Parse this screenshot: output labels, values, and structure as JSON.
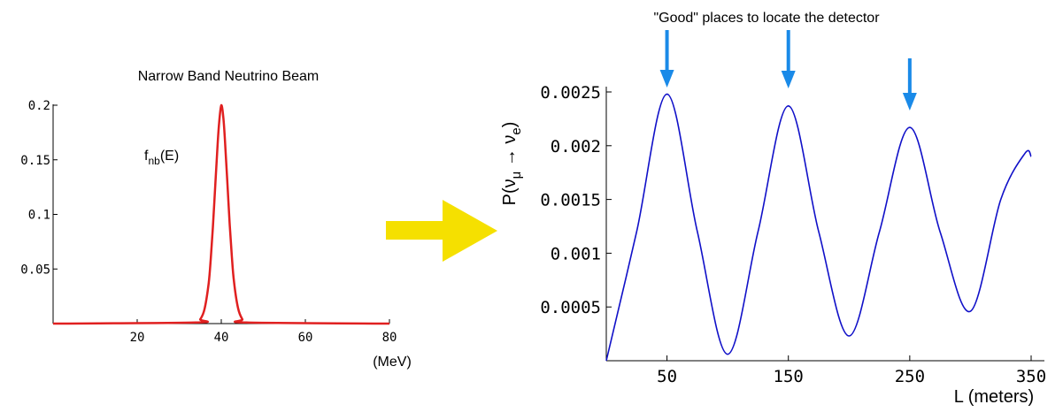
{
  "chart_data": [
    {
      "type": "line",
      "title": "Narrow Band Neutrino Beam",
      "xlabel": "(MeV)",
      "ylabel": "",
      "xlim": [
        0,
        80
      ],
      "ylim": [
        0,
        0.2
      ],
      "x_ticks": [
        20,
        40,
        60,
        80
      ],
      "x_tick_labels": [
        "20",
        "40",
        "60",
        "80"
      ],
      "y_ticks": [
        0.05,
        0.1,
        0.15,
        0.2
      ],
      "y_tick_labels": [
        "0.05",
        "0.1",
        "0.15",
        "0.2"
      ],
      "grid": false,
      "series": [
        {
          "label_main": "f",
          "label_sub": "nb",
          "label_tail": "(E)",
          "color": "#e02020",
          "x": [
            34,
            35,
            36,
            37,
            37.5,
            38,
            38.5,
            39,
            39.5,
            40,
            40.5,
            41,
            41.5,
            42,
            42.5,
            43,
            44,
            45,
            46
          ],
          "y": [
            0.001,
            0.004,
            0.013,
            0.037,
            0.059,
            0.088,
            0.122,
            0.156,
            0.184,
            0.2,
            0.188,
            0.16,
            0.126,
            0.091,
            0.062,
            0.039,
            0.014,
            0.004,
            0.001
          ]
        }
      ]
    },
    {
      "type": "line",
      "title": "\"Good\" places to locate the detector",
      "xlabel": "L (meters)",
      "ylabel_parts": [
        "P(ν",
        "μ",
        " → ν",
        "e",
        ")"
      ],
      "xlim": [
        0,
        350
      ],
      "ylim": [
        0,
        0.0025
      ],
      "x_ticks": [
        50,
        150,
        250,
        350
      ],
      "x_tick_labels": [
        "50",
        "150",
        "250",
        "350"
      ],
      "y_ticks": [
        0.0005,
        0.001,
        0.0015,
        0.002,
        0.0025
      ],
      "y_tick_labels": [
        "0.0005",
        "0.001",
        "0.0015",
        "0.002",
        "0.0025"
      ],
      "grid": false,
      "arrows_at_x": [
        50,
        150,
        250
      ],
      "series": [
        {
          "color": "#1010c8",
          "x": [
            0,
            25,
            50,
            75,
            100,
            125,
            150,
            175,
            200,
            225,
            250,
            275,
            300,
            325,
            345,
            350
          ],
          "y": [
            0.0,
            0.0012,
            0.00248,
            0.0012,
            6e-05,
            0.0012,
            0.00237,
            0.0012,
            0.00023,
            0.0012,
            0.00217,
            0.0012,
            0.00046,
            0.0015,
            0.00193,
            0.0019
          ]
        }
      ]
    }
  ],
  "colors": {
    "arrow_yellow": "#f5e000",
    "arrow_blue": "#1a8ae8",
    "axis": "#000000"
  }
}
